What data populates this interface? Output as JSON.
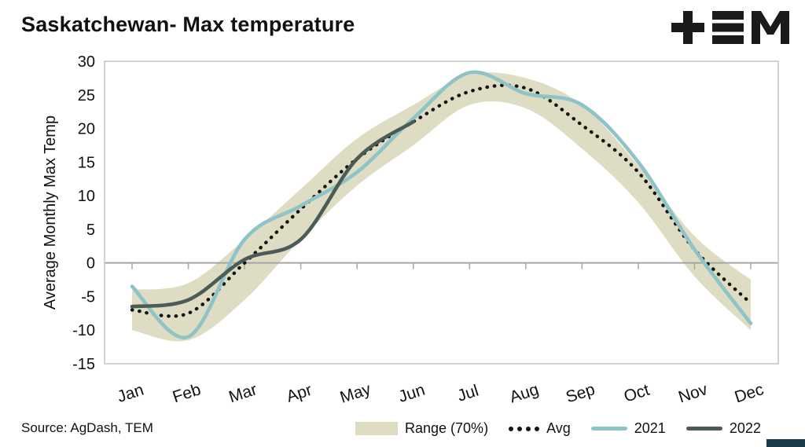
{
  "header": {
    "title": "Saskatchewan- Max temperature",
    "logo": "TEM"
  },
  "footer": {
    "source": "Source: AgDash, TEM"
  },
  "legend": [
    {
      "label": "Range (70%)",
      "type": "band"
    },
    {
      "label": "Avg",
      "type": "dotted"
    },
    {
      "label": "2021",
      "type": "line"
    },
    {
      "label": "2022",
      "type": "line"
    }
  ],
  "colors": {
    "band": "#dedcc2",
    "avg": "#141414",
    "y2021": "#8ec3c7",
    "y2022": "#4b5b56",
    "zero_line": "#a6a6a6",
    "frame": "#c4c4c4",
    "accent": "#1c3a49",
    "text": "#111111"
  },
  "chart_data": {
    "type": "line",
    "title": "Saskatchewan- Max temperature",
    "xlabel": "",
    "ylabel": "Average Monthly Max Temp",
    "ylim": [
      -15,
      30
    ],
    "ytick_step": 5,
    "grid": false,
    "legend_position": "bottom",
    "categories": [
      "Jan",
      "Feb",
      "Mar",
      "Apr",
      "May",
      "Jun",
      "Jul",
      "Aug",
      "Sep",
      "Oct",
      "Nov",
      "Dec"
    ],
    "band": {
      "name": "Range (70%)",
      "low": [
        -10,
        -11.5,
        -5.5,
        3.5,
        11.5,
        17.5,
        23.5,
        23,
        17,
        9,
        -2,
        -10
      ],
      "high": [
        -4,
        -3,
        3.5,
        11,
        18.5,
        23.5,
        28,
        27.5,
        23.5,
        14.5,
        4,
        -2.5
      ]
    },
    "series": [
      {
        "name": "Avg",
        "style": "dotted",
        "values": [
          -7,
          -7.5,
          0,
          8,
          15.5,
          21,
          25.5,
          26,
          20.5,
          13.5,
          2,
          -6
        ]
      },
      {
        "name": "2021",
        "style": "solid",
        "values": [
          -3.5,
          -11,
          3.5,
          8.5,
          13.5,
          21.5,
          28.3,
          25.2,
          23.5,
          15,
          2,
          -9
        ]
      },
      {
        "name": "2022",
        "style": "solid",
        "values": [
          -6.5,
          -5.5,
          0.5,
          3.5,
          15.5,
          21,
          null,
          null,
          null,
          null,
          null,
          null
        ]
      }
    ]
  }
}
